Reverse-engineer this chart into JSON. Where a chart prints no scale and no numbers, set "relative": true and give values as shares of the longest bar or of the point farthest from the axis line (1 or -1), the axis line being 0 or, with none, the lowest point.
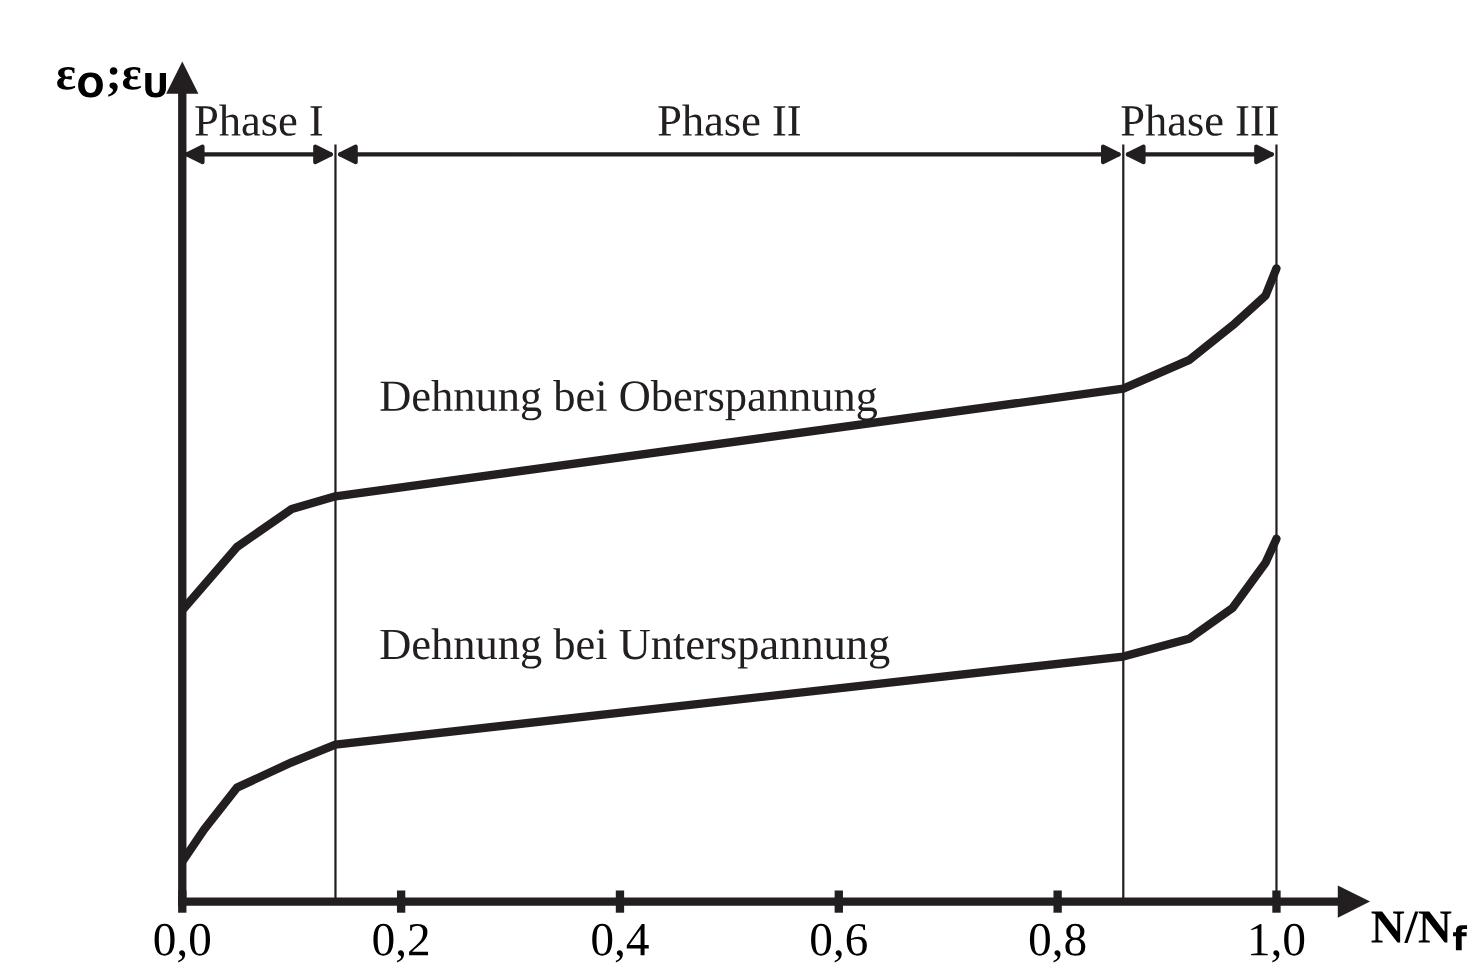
{
  "chart_data": {
    "type": "line",
    "relative": true,
    "xlabel": "N/N$_{f}$",
    "ylabel": "ε$_{O}$;ε$_{U}$",
    "xlim": [
      0,
      1.07
    ],
    "xticks": [
      {
        "value": 0,
        "label": "0,0"
      },
      {
        "value": 0.2,
        "label": "0,2"
      },
      {
        "value": 0.4,
        "label": "0,4"
      },
      {
        "value": 0.6,
        "label": "0,6"
      },
      {
        "value": 0.8,
        "label": "0,8"
      },
      {
        "value": 1.0,
        "label": "1,0"
      }
    ],
    "x": [
      0,
      0.02,
      0.05,
      0.1,
      0.14,
      0.86,
      0.92,
      0.96,
      0.99,
      1.0
    ],
    "series": [
      {
        "name": "Dehnung bei Oberspannung",
        "color": "#231f20",
        "values": [
          0.46,
          0.5,
          0.56,
          0.62,
          0.64,
          0.81,
          0.855,
          0.91,
          0.957,
          1.0
        ]
      },
      {
        "name": "Dehnung bei Unterspannung",
        "color": "#231f20",
        "values": [
          0.063,
          0.114,
          0.18,
          0.22,
          0.248,
          0.387,
          0.415,
          0.464,
          0.535,
          0.573
        ]
      }
    ],
    "ref_lines": [
      {
        "axis": "x",
        "value": 0.14,
        "label": null
      },
      {
        "axis": "x",
        "value": 0.86,
        "label": null
      },
      {
        "axis": "x",
        "value": 1.0,
        "label": null
      }
    ],
    "annotations": [
      "Phase I",
      "Phase II",
      "Phase III"
    ],
    "grid": false,
    "legend": false,
    "marker": "none",
    "line_style": "solid"
  }
}
